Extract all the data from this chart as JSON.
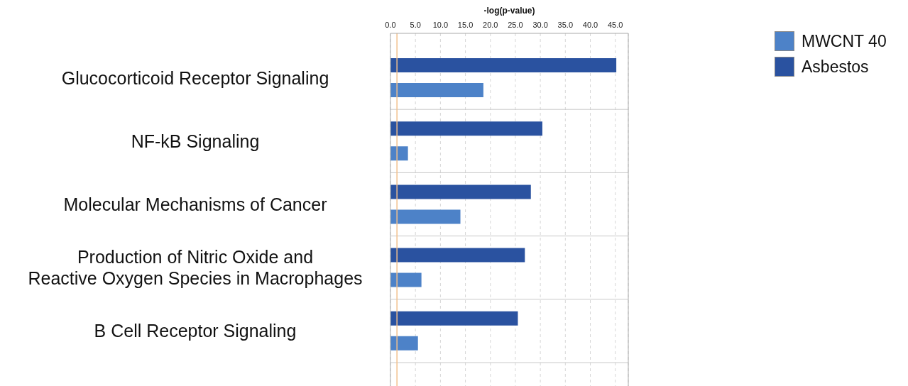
{
  "chart_data": {
    "type": "bar",
    "orientation": "horizontal",
    "xlabel": "-log(p-value)",
    "categories": [
      "Glucocorticoid Receptor Signaling",
      "NF-kB Signaling",
      "Molecular Mechanisms of Cancer",
      "Production of Nitric Oxide and Reactive Oxygen Species in Macrophages",
      "B Cell Receptor Signaling"
    ],
    "series": [
      {
        "name": "Asbestos",
        "color": "#2a52a0",
        "values": [
          45.2,
          30.4,
          28.1,
          26.9,
          25.5
        ]
      },
      {
        "name": "MWCNT 40",
        "color": "#4d82c8",
        "values": [
          18.6,
          3.5,
          14.0,
          6.2,
          5.5
        ]
      }
    ],
    "xlim": [
      0,
      47.6
    ],
    "xticks": [
      {
        "value": 0,
        "label": "0.0"
      },
      {
        "value": 5,
        "label": "5.0"
      },
      {
        "value": 10,
        "label": "10.0"
      },
      {
        "value": 15,
        "label": "15.0"
      },
      {
        "value": 20,
        "label": "20.0"
      },
      {
        "value": 25,
        "label": "25.0"
      },
      {
        "value": 30,
        "label": "30.0"
      },
      {
        "value": 35,
        "label": "35.0"
      },
      {
        "value": 40,
        "label": "40.0"
      },
      {
        "value": 45,
        "label": "45.0"
      }
    ],
    "ref_lines": [
      {
        "axis": "x",
        "value": 1.3,
        "color": "#f2c08c"
      }
    ],
    "grid": true,
    "legend": "top right"
  }
}
